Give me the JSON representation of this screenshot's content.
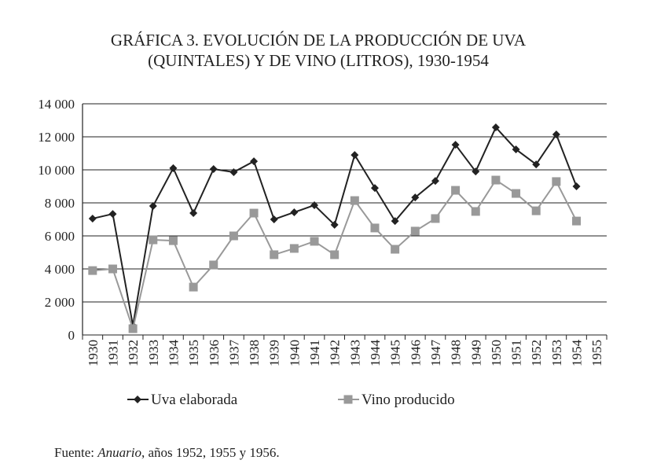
{
  "chart_data": {
    "type": "line",
    "title": [
      "GRÁFICA 3. EVOLUCIÓN DE LA PRODUCCIÓN DE UVA",
      "(QUINTALES) Y DE VINO (LITROS), 1930-1954"
    ],
    "categories": [
      "1930",
      "1931",
      "1932",
      "1933",
      "1934",
      "1935",
      "1936",
      "1937",
      "1938",
      "1939",
      "1940",
      "1941",
      "1942",
      "1943",
      "1944",
      "1945",
      "1946",
      "1947",
      "1948",
      "1949",
      "1950",
      "1951",
      "1952",
      "1953",
      "1954",
      "1955"
    ],
    "series": [
      {
        "name": "Uva elaborada",
        "color": "#222222",
        "marker": "diamond",
        "values": [
          7050,
          7330,
          570,
          7810,
          10100,
          7380,
          10050,
          9860,
          10520,
          7000,
          7430,
          7860,
          6670,
          10900,
          8900,
          6900,
          8330,
          9330,
          11520,
          9900,
          12570,
          11240,
          10330,
          12140,
          9000,
          null
        ]
      },
      {
        "name": "Vino producido",
        "color": "#999999",
        "marker": "square",
        "values": [
          3900,
          4000,
          380,
          5760,
          5710,
          2900,
          4240,
          6000,
          7380,
          4860,
          5240,
          5670,
          4860,
          8140,
          6480,
          5190,
          6290,
          7050,
          8760,
          7480,
          9380,
          8570,
          7520,
          9290,
          6900,
          null
        ]
      }
    ],
    "ylim": [
      0,
      14000
    ],
    "yticks": [
      {
        "value": 0,
        "label": "0"
      },
      {
        "value": 2000,
        "label": "2 000"
      },
      {
        "value": 4000,
        "label": "4 000"
      },
      {
        "value": 6000,
        "label": "6 000"
      },
      {
        "value": 8000,
        "label": "8 000"
      },
      {
        "value": 10000,
        "label": "10 000"
      },
      {
        "value": 12000,
        "label": "12 000"
      },
      {
        "value": 14000,
        "label": "14 000"
      }
    ],
    "grid": true,
    "legend": "bottom",
    "source": [
      "Fuente:",
      "Anuario",
      ", años 1952, 1955 y 1956."
    ]
  }
}
